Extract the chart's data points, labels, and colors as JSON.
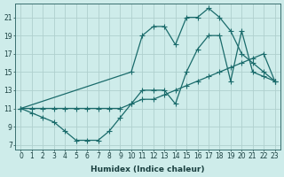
{
  "xlabel": "Humidex (Indice chaleur)",
  "bg_color": "#ceecea",
  "grid_color": "#b0d0ce",
  "line_color": "#1a6b6b",
  "xlim": [
    -0.5,
    23.5
  ],
  "ylim": [
    6.5,
    22.5
  ],
  "xticks": [
    0,
    1,
    2,
    3,
    4,
    5,
    6,
    7,
    8,
    9,
    10,
    11,
    12,
    13,
    14,
    15,
    16,
    17,
    18,
    19,
    20,
    21,
    22,
    23
  ],
  "yticks": [
    7,
    9,
    11,
    13,
    15,
    17,
    19,
    21
  ],
  "line1_x": [
    0,
    1,
    2,
    3,
    4,
    5,
    6,
    7,
    8,
    9,
    10,
    11,
    12,
    13,
    14,
    15,
    16,
    17,
    18,
    19,
    20,
    21,
    22,
    23
  ],
  "line1_y": [
    11,
    10.5,
    10,
    9.5,
    8.5,
    7.5,
    7.5,
    7.5,
    8.5,
    10,
    11.5,
    13,
    13,
    13,
    11.5,
    15,
    17.5,
    19,
    19,
    14,
    19.5,
    15,
    14.5,
    14
  ],
  "line2_x": [
    0,
    1,
    2,
    3,
    4,
    5,
    6,
    7,
    8,
    9,
    10,
    11,
    12,
    13,
    14,
    15,
    16,
    17,
    18,
    19,
    20,
    21,
    22,
    23
  ],
  "line2_y": [
    11,
    11,
    11,
    11,
    11,
    11,
    11,
    11,
    11,
    11,
    11.5,
    12,
    12,
    12.5,
    13,
    13.5,
    14,
    14.5,
    15,
    15.5,
    16,
    16.5,
    17,
    14
  ],
  "line3_x": [
    0,
    10,
    11,
    12,
    13,
    14,
    15,
    16,
    17,
    18,
    19,
    20,
    21,
    22,
    23
  ],
  "line3_y": [
    11,
    15,
    19,
    20,
    20,
    18,
    21,
    21,
    22,
    21,
    19.5,
    17,
    16,
    15,
    14
  ]
}
